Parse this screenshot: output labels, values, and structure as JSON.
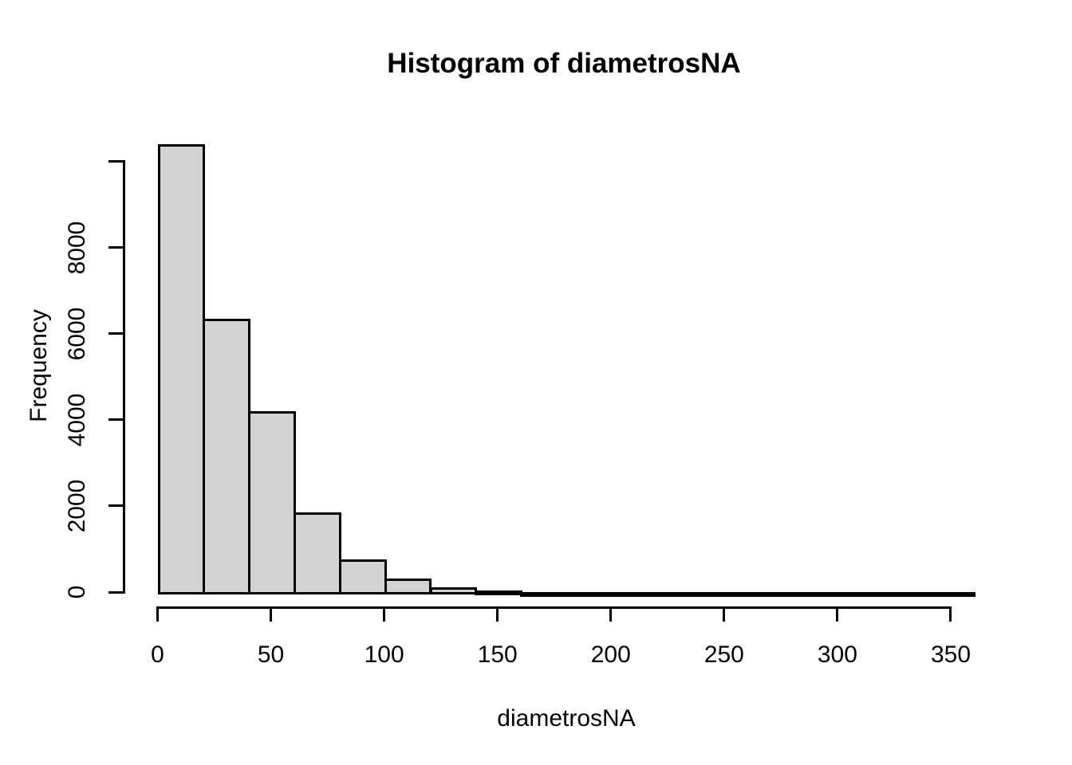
{
  "chart_data": {
    "type": "bar",
    "subtype": "histogram",
    "title": "Histogram of diametrosNA",
    "xlabel": "diametrosNA",
    "ylabel": "Frequency",
    "xlim": [
      0,
      360
    ],
    "ylim": [
      0,
      10450
    ],
    "bin_width": 20,
    "bins": [
      {
        "start": 0,
        "end": 20,
        "count": 10450
      },
      {
        "start": 20,
        "end": 40,
        "count": 6400
      },
      {
        "start": 40,
        "end": 60,
        "count": 4250
      },
      {
        "start": 60,
        "end": 80,
        "count": 1900
      },
      {
        "start": 80,
        "end": 100,
        "count": 810
      },
      {
        "start": 100,
        "end": 120,
        "count": 370
      },
      {
        "start": 120,
        "end": 140,
        "count": 165
      },
      {
        "start": 140,
        "end": 160,
        "count": 90
      },
      {
        "start": 160,
        "end": 180,
        "count": 55
      },
      {
        "start": 180,
        "end": 200,
        "count": 20
      },
      {
        "start": 200,
        "end": 220,
        "count": 12
      },
      {
        "start": 220,
        "end": 240,
        "count": 8
      },
      {
        "start": 240,
        "end": 260,
        "count": 5
      },
      {
        "start": 260,
        "end": 280,
        "count": 3
      },
      {
        "start": 280,
        "end": 300,
        "count": 2
      },
      {
        "start": 300,
        "end": 320,
        "count": 1
      },
      {
        "start": 320,
        "end": 340,
        "count": 1
      },
      {
        "start": 340,
        "end": 360,
        "count": 1
      }
    ],
    "x_ticks": [
      {
        "value": 0,
        "label": "0"
      },
      {
        "value": 50,
        "label": "50"
      },
      {
        "value": 100,
        "label": "100"
      },
      {
        "value": 150,
        "label": "150"
      },
      {
        "value": 200,
        "label": "200"
      },
      {
        "value": 250,
        "label": "250"
      },
      {
        "value": 300,
        "label": "300"
      },
      {
        "value": 350,
        "label": "350"
      }
    ],
    "y_ticks": [
      {
        "value": 0,
        "label": "0"
      },
      {
        "value": 2000,
        "label": "2000"
      },
      {
        "value": 4000,
        "label": "4000"
      },
      {
        "value": 6000,
        "label": "6000"
      },
      {
        "value": 8000,
        "label": "8000"
      },
      {
        "value": 10000,
        "label": ""
      }
    ],
    "grid": false,
    "legend": null,
    "colors": {
      "bar_fill": "#d3d3d3",
      "bar_border": "#000000",
      "axis": "#000000",
      "text": "#000000",
      "background": "#ffffff"
    }
  }
}
